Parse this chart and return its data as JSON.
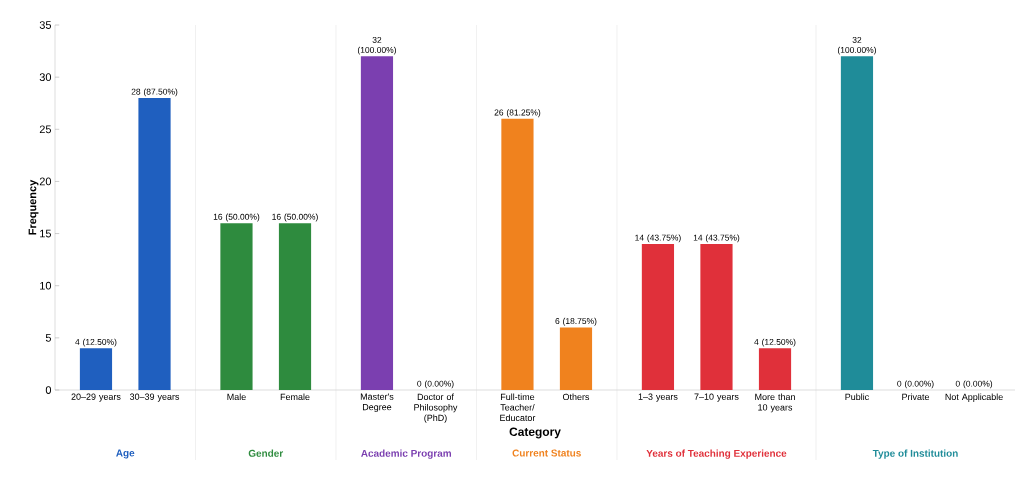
{
  "chart_data": [
    {
      "type": "bar",
      "xlabel": "Age",
      "ylabel": "Frequency",
      "annotations": [
        "Category"
      ],
      "color": "#1f5fbf",
      "categories": [
        "20–29 years",
        "30–39 years"
      ],
      "values": [
        4,
        28
      ],
      "value_labels": [
        "4 (12.50%)",
        "28 (87.50%)"
      ],
      "ylim": [
        0,
        35
      ],
      "yticks": [
        0,
        5,
        10,
        15,
        20,
        25,
        30,
        35
      ]
    },
    {
      "type": "bar",
      "xlabel": "Gender",
      "color": "#2e8b3e",
      "categories": [
        "Male",
        "Female"
      ],
      "values": [
        16,
        16
      ],
      "value_labels": [
        "16 (50.00%)",
        "16 (50.00%)"
      ],
      "ylim": [
        0,
        35
      ],
      "yticks": [
        0,
        5,
        10,
        15,
        20,
        25,
        30,
        35
      ],
      "tick_labels": "x"
    },
    {
      "type": "bar",
      "xlabel": "Academic Program",
      "color": "#7b3fb0",
      "categories": [
        "Master's Degree",
        "Doctor of Philosophy (PhD)"
      ],
      "values": [
        32,
        0
      ],
      "value_labels": [
        "32 (100.00%)",
        "0 (0.00%)"
      ],
      "ylim": [
        0,
        35
      ],
      "yticks": [
        0,
        5,
        10,
        15,
        20,
        25,
        30,
        35
      ],
      "tick_labels": "x"
    },
    {
      "type": "bar",
      "xlabel": "Current Status",
      "color": "#f0821e",
      "categories": [
        "Full-time Teacher/ Educator",
        "Others"
      ],
      "values": [
        26,
        6
      ],
      "value_labels": [
        "26 (81.25%)",
        "6 (18.75%)"
      ],
      "ylim": [
        0,
        35
      ],
      "yticks": [
        0,
        5,
        10,
        15,
        20,
        25,
        30,
        35
      ],
      "tick_labels": "x"
    },
    {
      "type": "bar",
      "xlabel": "Years of Teaching Experience",
      "color": "#e0303a",
      "categories": [
        "1–3 years",
        "7–10 years",
        "More than 10 years"
      ],
      "values": [
        14,
        14,
        4
      ],
      "value_labels": [
        "14 (43.75%)",
        "14 (43.75%)",
        "4 (12.50%)"
      ],
      "ylim": [
        0,
        35
      ],
      "yticks": [
        0,
        5,
        10,
        15,
        20,
        25,
        30,
        35
      ],
      "tick_labels": "x"
    },
    {
      "type": "bar",
      "xlabel": "Type of Institution",
      "color": "#1f8c99",
      "categories": [
        "Public",
        "Private",
        "Not Applicable"
      ],
      "values": [
        32,
        0,
        0
      ],
      "value_labels": [
        "32 (100.00%)",
        "0 (0.00%)",
        "0 (0.00%)"
      ],
      "ylim": [
        0,
        35
      ],
      "yticks": [
        0,
        5,
        10,
        15,
        20,
        25,
        30,
        35
      ],
      "tick_labels": "x"
    }
  ]
}
